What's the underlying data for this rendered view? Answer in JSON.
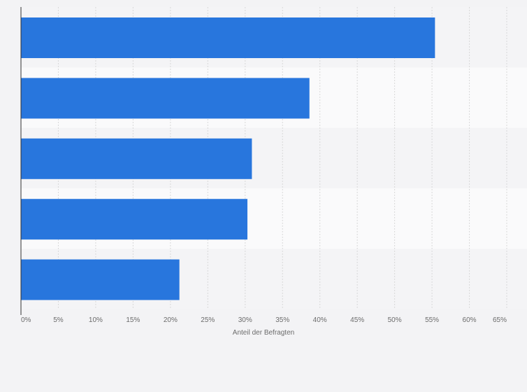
{
  "chart_data": {
    "type": "bar",
    "orientation": "horizontal",
    "categories": [
      "",
      "",
      "",
      "",
      ""
    ],
    "values": [
      55.4,
      38.6,
      30.9,
      30.3,
      21.2
    ],
    "xlabel": "Anteil der Befragten",
    "ylabel": "",
    "xlim": [
      0,
      65
    ],
    "x_ticks": [
      0,
      5,
      10,
      15,
      20,
      25,
      30,
      35,
      40,
      45,
      50,
      55,
      60,
      65
    ],
    "x_tick_labels": [
      "0%",
      "5%",
      "10%",
      "15%",
      "20%",
      "25%",
      "30%",
      "35%",
      "40%",
      "45%",
      "50%",
      "55%",
      "60%",
      "65%"
    ],
    "grid": true,
    "bar_color": "#2876dd",
    "band_colors": [
      "#f4f4f6",
      "#fafafb"
    ]
  }
}
